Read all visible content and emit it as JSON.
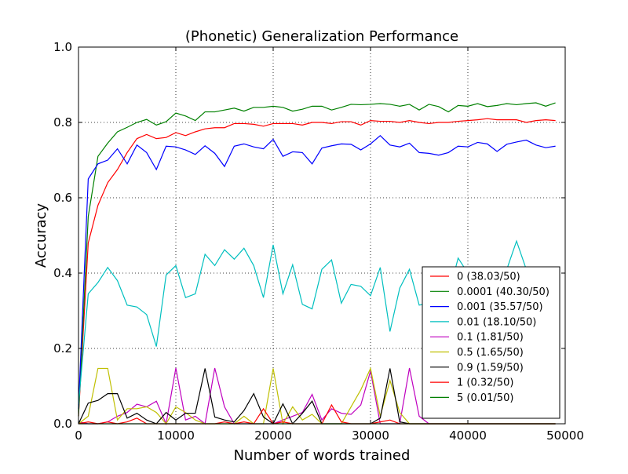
{
  "chart_data": {
    "type": "line",
    "title": "(Phonetic) Generalization Performance",
    "xlabel": "Number of words trained",
    "ylabel": "Accuracy",
    "xlim": [
      0,
      50000
    ],
    "ylim": [
      0.0,
      1.0
    ],
    "xticks": [
      0,
      10000,
      20000,
      30000,
      40000,
      50000
    ],
    "xtick_labels": [
      "0",
      "10000",
      "20000",
      "30000",
      "40000",
      "50000"
    ],
    "yticks": [
      0.0,
      0.2,
      0.4,
      0.6,
      0.8,
      1.0
    ],
    "ytick_labels": [
      "0.0",
      "0.2",
      "0.4",
      "0.6",
      "0.8",
      "1.0"
    ],
    "grid": true,
    "legend_position": "lower-right",
    "x": [
      0,
      1000,
      2000,
      3000,
      4000,
      5000,
      6000,
      7000,
      8000,
      9000,
      10000,
      11000,
      12000,
      13000,
      14000,
      15000,
      16000,
      17000,
      18000,
      19000,
      20000,
      21000,
      22000,
      23000,
      24000,
      25000,
      26000,
      27000,
      28000,
      29000,
      30000,
      31000,
      32000,
      33000,
      34000,
      35000,
      36000,
      37000,
      38000,
      39000,
      40000,
      41000,
      42000,
      43000,
      44000,
      45000,
      46000,
      47000,
      48000,
      49000
    ],
    "series": [
      {
        "name": "0 (38.03/50)",
        "color": "#ff0000",
        "values": [
          0.02,
          0.48,
          0.58,
          0.64,
          0.675,
          0.72,
          0.757,
          0.768,
          0.757,
          0.76,
          0.773,
          0.765,
          0.775,
          0.783,
          0.786,
          0.786,
          0.797,
          0.797,
          0.795,
          0.79,
          0.797,
          0.797,
          0.797,
          0.793,
          0.8,
          0.8,
          0.797,
          0.802,
          0.802,
          0.793,
          0.805,
          0.803,
          0.803,
          0.8,
          0.805,
          0.8,
          0.797,
          0.8,
          0.8,
          0.803,
          0.805,
          0.807,
          0.81,
          0.807,
          0.807,
          0.807,
          0.8,
          0.805,
          0.807,
          0.805
        ]
      },
      {
        "name": "0.0001 (40.30/50)",
        "color": "#008000",
        "values": [
          0.02,
          0.55,
          0.71,
          0.745,
          0.775,
          0.787,
          0.8,
          0.808,
          0.793,
          0.802,
          0.825,
          0.817,
          0.805,
          0.828,
          0.828,
          0.833,
          0.838,
          0.83,
          0.84,
          0.84,
          0.843,
          0.84,
          0.83,
          0.835,
          0.843,
          0.843,
          0.833,
          0.84,
          0.848,
          0.847,
          0.848,
          0.85,
          0.848,
          0.843,
          0.848,
          0.833,
          0.848,
          0.842,
          0.828,
          0.845,
          0.843,
          0.85,
          0.842,
          0.845,
          0.85,
          0.847,
          0.85,
          0.852,
          0.843,
          0.852
        ]
      },
      {
        "name": "0.001 (35.57/50)",
        "color": "#0000ff",
        "values": [
          0.04,
          0.65,
          0.69,
          0.7,
          0.73,
          0.69,
          0.74,
          0.72,
          0.675,
          0.737,
          0.735,
          0.727,
          0.715,
          0.738,
          0.718,
          0.683,
          0.737,
          0.743,
          0.735,
          0.73,
          0.755,
          0.71,
          0.722,
          0.72,
          0.69,
          0.732,
          0.738,
          0.743,
          0.742,
          0.727,
          0.743,
          0.765,
          0.74,
          0.735,
          0.745,
          0.72,
          0.718,
          0.713,
          0.72,
          0.737,
          0.735,
          0.747,
          0.743,
          0.723,
          0.742,
          0.748,
          0.753,
          0.74,
          0.733,
          0.737
        ]
      },
      {
        "name": "0.01 (18.10/50)",
        "color": "#00bfbf",
        "values": [
          0.05,
          0.345,
          0.375,
          0.415,
          0.38,
          0.315,
          0.31,
          0.29,
          0.205,
          0.395,
          0.42,
          0.335,
          0.345,
          0.45,
          0.42,
          0.462,
          0.437,
          0.466,
          0.42,
          0.335,
          0.475,
          0.345,
          0.422,
          0.317,
          0.305,
          0.41,
          0.435,
          0.32,
          0.37,
          0.365,
          0.34,
          0.415,
          0.245,
          0.36,
          0.41,
          0.315,
          0.32,
          0.35,
          0.34,
          0.44,
          0.4,
          0.345,
          0.385,
          0.37,
          0.41,
          0.485,
          0.41,
          0.35,
          0.34,
          0.36
        ]
      },
      {
        "name": "0.1 (1.81/50)",
        "color": "#bf00bf",
        "values": [
          0.005,
          0.0,
          0.0,
          0.005,
          0.02,
          0.03,
          0.052,
          0.045,
          0.06,
          0.0,
          0.148,
          0.01,
          0.02,
          0.0,
          0.148,
          0.045,
          0.0,
          0.0,
          0.0,
          0.0,
          0.0,
          0.01,
          0.02,
          0.03,
          0.078,
          0.01,
          0.04,
          0.028,
          0.025,
          0.05,
          0.14,
          0.0,
          0.0,
          0.0,
          0.148,
          0.02,
          0.0,
          0.0,
          0.0,
          0.0,
          0.0,
          0.0,
          0.0,
          0.0,
          0.0,
          0.0,
          0.0,
          0.0,
          0.0,
          0.0
        ]
      },
      {
        "name": "0.5 (1.65/50)",
        "color": "#bfbf00",
        "values": [
          0.0,
          0.02,
          0.147,
          0.147,
          0.01,
          0.04,
          0.04,
          0.045,
          0.03,
          0.0,
          0.045,
          0.03,
          0.01,
          0.0,
          0.0,
          0.0,
          0.0,
          0.02,
          0.0,
          0.0,
          0.147,
          0.0,
          0.045,
          0.01,
          0.025,
          0.0,
          0.0,
          0.0,
          0.045,
          0.09,
          0.147,
          0.02,
          0.115,
          0.03,
          0.0,
          0.0,
          0.0,
          0.0,
          0.0,
          0.0,
          0.0,
          0.0,
          0.0,
          0.0,
          0.0,
          0.0,
          0.0,
          0.0,
          0.0,
          0.0
        ]
      },
      {
        "name": "0.9 (1.59/50)",
        "color": "#000000",
        "values": [
          0.0,
          0.055,
          0.062,
          0.08,
          0.08,
          0.015,
          0.028,
          0.01,
          0.0,
          0.03,
          0.01,
          0.028,
          0.028,
          0.147,
          0.018,
          0.01,
          0.005,
          0.035,
          0.08,
          0.018,
          0.0,
          0.053,
          0.0,
          0.028,
          0.06,
          0.0,
          0.0,
          0.0,
          0.0,
          0.0,
          0.0,
          0.015,
          0.147,
          0.005,
          0.0,
          0.0,
          0.0,
          0.0,
          0.0,
          0.0,
          0.0,
          0.0,
          0.0,
          0.0,
          0.0,
          0.0,
          0.0,
          0.0,
          0.0,
          0.0
        ]
      },
      {
        "name": "1 (0.32/50)",
        "color": "#ff0000",
        "values": [
          0.0,
          0.005,
          0.0,
          0.005,
          0.0,
          0.005,
          0.015,
          0.0,
          0.0,
          0.0,
          0.0,
          0.0,
          0.0,
          0.0,
          0.0,
          0.005,
          0.0,
          0.005,
          0.0,
          0.04,
          0.0,
          0.005,
          0.0,
          0.0,
          0.0,
          0.0,
          0.05,
          0.005,
          0.0,
          0.0,
          0.0,
          0.005,
          0.01,
          0.0,
          0.0,
          0.0,
          0.0,
          0.0,
          0.0,
          0.0,
          0.0,
          0.0,
          0.0,
          0.0,
          0.0,
          0.0,
          0.0,
          0.0,
          0.0,
          0.0
        ]
      },
      {
        "name": "5 (0.01/50)",
        "color": "#008000",
        "values": [
          0.0,
          0.0,
          0.0,
          0.0,
          0.0,
          0.0,
          0.0,
          0.0,
          0.0,
          0.0,
          0.0,
          0.0,
          0.0,
          0.0,
          0.0,
          0.0,
          0.0,
          0.0,
          0.0,
          0.0,
          0.0,
          0.0,
          0.0,
          0.0,
          0.0,
          0.0,
          0.0,
          0.0,
          0.0,
          0.0,
          0.0,
          0.0,
          0.0,
          0.0,
          0.0,
          0.0,
          0.0,
          0.0,
          0.0,
          0.0,
          0.0,
          0.0,
          0.0,
          0.0,
          0.0,
          0.0,
          0.0,
          0.0,
          0.0,
          0.0
        ]
      }
    ]
  }
}
